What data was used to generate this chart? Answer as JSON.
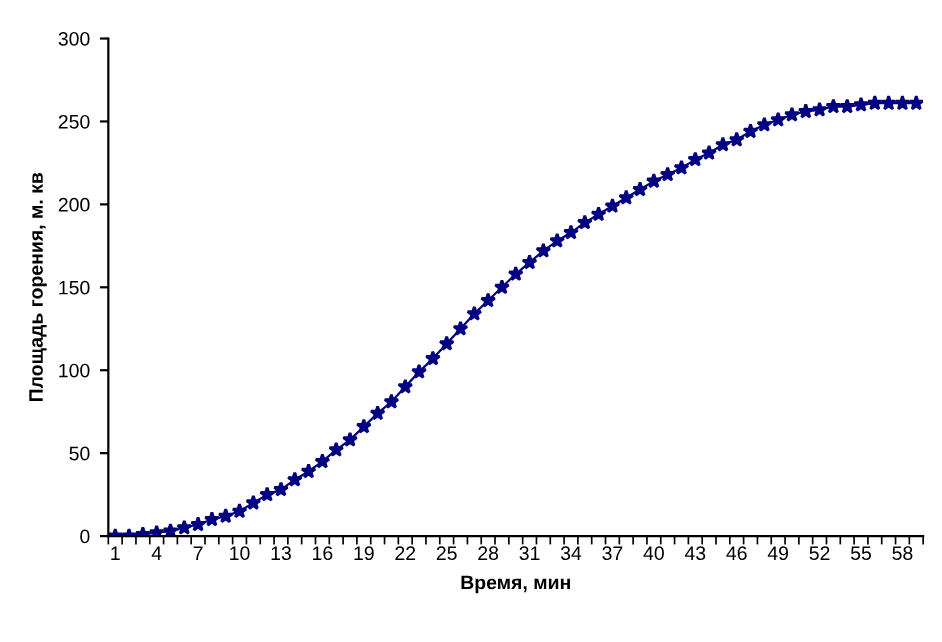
{
  "chart_data": {
    "type": "line",
    "xlabel": "Время, мин",
    "ylabel": "Площадь горения, м. кв",
    "categories": [
      "1",
      null,
      null,
      "4",
      null,
      null,
      "7",
      null,
      null,
      "10",
      null,
      null,
      "13",
      null,
      null,
      "16",
      null,
      null,
      "19",
      null,
      null,
      "22",
      null,
      null,
      "25",
      null,
      null,
      "28",
      null,
      null,
      "31",
      null,
      null,
      "34",
      null,
      null,
      "37",
      null,
      null,
      "40",
      null,
      null,
      "43",
      null,
      null,
      "46",
      null,
      null,
      "49",
      null,
      null,
      "52",
      null,
      null,
      "55",
      null,
      null,
      "58",
      null
    ],
    "series": [
      {
        "color": "#000080",
        "values": [
          0,
          0,
          1,
          2,
          3,
          5,
          7,
          10,
          12,
          15,
          20,
          25,
          28,
          34,
          39,
          45,
          52,
          58,
          66,
          74,
          81,
          90,
          99,
          107,
          116,
          125,
          134,
          142,
          150,
          158,
          165,
          172,
          178,
          183,
          189,
          194,
          199,
          204,
          209,
          214,
          218,
          222,
          227,
          231,
          236,
          239,
          244,
          248,
          251,
          254,
          256,
          257,
          259,
          259,
          260,
          261,
          261,
          261,
          261
        ]
      }
    ],
    "ylim": [
      0,
      300
    ],
    "yticks": [
      0,
      50,
      100,
      150,
      200,
      250,
      300
    ],
    "grid": false,
    "legend": false,
    "marker": "star",
    "line_style": "solid"
  }
}
